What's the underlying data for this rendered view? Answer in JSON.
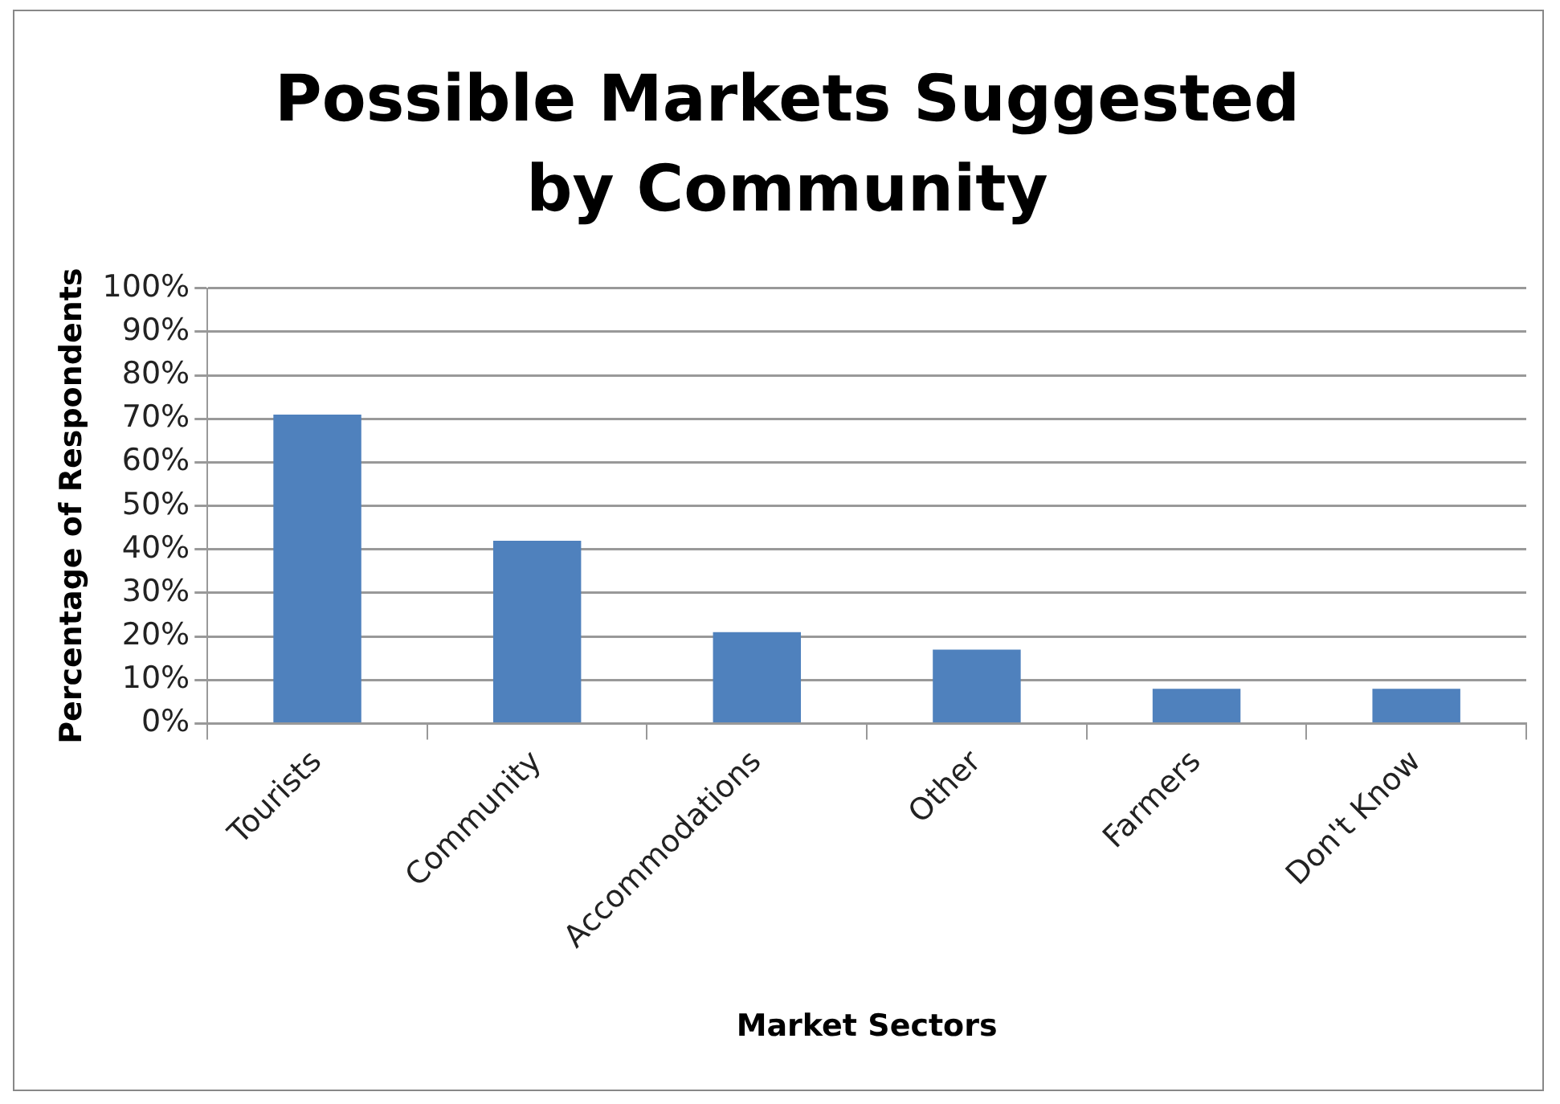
{
  "chart_data": {
    "type": "bar",
    "title": "Possible Markets Suggested by Community",
    "xlabel": "Market Sectors",
    "ylabel": "Percentage of Respondents",
    "categories": [
      "Tourists",
      "Community",
      "Accommodations",
      "Other",
      "Farmers",
      "Don't Know"
    ],
    "values": [
      71,
      42,
      21,
      17,
      8,
      8
    ],
    "color": "#4f81bd",
    "ylim": [
      0,
      100
    ],
    "yticks": [
      {
        "value": 0,
        "label": "0%"
      },
      {
        "value": 10,
        "label": "10%"
      },
      {
        "value": 20,
        "label": "20%"
      },
      {
        "value": 30,
        "label": "30%"
      },
      {
        "value": 40,
        "label": "40%"
      },
      {
        "value": 50,
        "label": "50%"
      },
      {
        "value": 60,
        "label": "60%"
      },
      {
        "value": 70,
        "label": "70%"
      },
      {
        "value": 80,
        "label": "80%"
      },
      {
        "value": 90,
        "label": "90%"
      },
      {
        "value": 100,
        "label": "100%"
      }
    ],
    "grid": "y",
    "legend": false
  }
}
